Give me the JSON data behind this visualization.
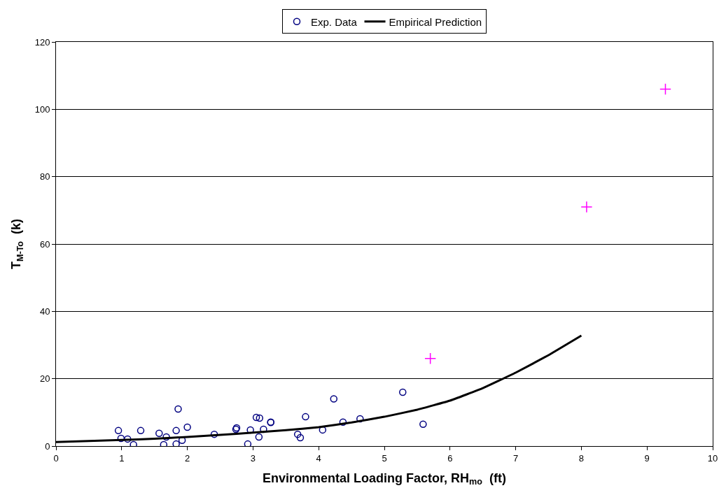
{
  "chart_data": {
    "type": "scatter",
    "xlabel": "Environmental Loading Factor, RH$_{mo}$  (ft)",
    "ylabel": "T$_{M-To}$  (k)",
    "xlim": [
      0,
      10
    ],
    "xticks": [
      0,
      1,
      2,
      3,
      4,
      5,
      6,
      7,
      8,
      9,
      10
    ],
    "ylim": [
      0,
      120
    ],
    "yticks": [
      0,
      20,
      40,
      60,
      80,
      100,
      120
    ],
    "grid": "y",
    "legend": "top",
    "series": [
      {
        "name": "Exp. Data",
        "marker": "circle",
        "color": "#000080",
        "x": [
          0.95,
          0.99,
          1.09,
          1.18,
          1.29,
          1.57,
          1.64,
          1.68,
          1.83,
          1.86,
          1.83,
          1.92,
          2.0,
          2.41,
          2.74,
          2.75,
          2.92,
          2.96,
          3.05,
          3.1,
          3.09,
          3.16,
          3.27,
          3.27,
          3.68,
          3.72,
          3.8,
          4.06,
          4.23,
          4.37,
          4.63,
          5.28,
          5.59
        ],
        "values": [
          4.6,
          2.3,
          2.1,
          0.4,
          4.6,
          3.8,
          0.4,
          2.7,
          4.6,
          11.0,
          0.6,
          1.7,
          5.6,
          3.5,
          5.0,
          5.4,
          0.6,
          4.8,
          8.5,
          8.3,
          2.7,
          5.0,
          7.1,
          7.0,
          3.5,
          2.5,
          8.7,
          4.8,
          14.0,
          7.1,
          8.1,
          16.0,
          6.5
        ]
      },
      {
        "marker": "cross",
        "color": "#ff00ff",
        "x": [
          5.7,
          8.08,
          9.28
        ],
        "values": [
          26.0,
          71.0,
          106.0
        ]
      },
      {
        "name": "Empirical Prediction",
        "type": "line",
        "marker": "none",
        "color": "#000000",
        "line_style": "solid",
        "x": [
          0,
          0.5,
          1,
          1.5,
          2,
          2.5,
          3,
          3.5,
          4,
          4.5,
          5,
          5.5,
          6,
          6.5,
          7,
          7.5,
          8
        ],
        "values": [
          1.2,
          1.5,
          1.8,
          2.2,
          2.7,
          3.3,
          4.0,
          4.7,
          5.6,
          7.0,
          8.7,
          10.8,
          13.5,
          17.2,
          21.8,
          27.0,
          32.8
        ]
      }
    ]
  }
}
